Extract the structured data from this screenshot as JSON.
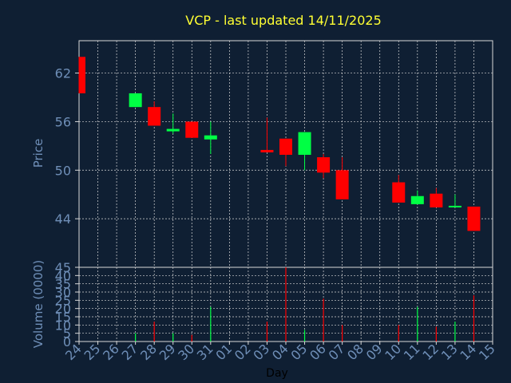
{
  "title": "VCP - last updated 14/11/2025",
  "colors": {
    "background": "#0f1f33",
    "title": "#ffff33",
    "axis_text": "#6f8fb8",
    "grid": "#d8d8d8",
    "up": "#00ff44",
    "down": "#ff0000"
  },
  "chart_data": {
    "type": "candlestick",
    "xlabel": "Day",
    "x_ticks": [
      "24",
      "25",
      "26",
      "27",
      "28",
      "29",
      "30",
      "31",
      "01",
      "02",
      "03",
      "04",
      "05",
      "06",
      "07",
      "08",
      "09",
      "10",
      "11",
      "12",
      "13",
      "14",
      "15"
    ],
    "price_panel": {
      "ylabel": "Price",
      "ylim": [
        38,
        66
      ],
      "y_ticks": [
        44,
        50,
        56,
        62
      ],
      "candles": [
        {
          "x": "24",
          "open": 64.0,
          "close": 59.5,
          "high": 64.0,
          "low": 59.5
        },
        {
          "x": "27",
          "open": 57.8,
          "close": 59.5,
          "high": 59.5,
          "low": 57.8
        },
        {
          "x": "28",
          "open": 57.8,
          "close": 55.5,
          "high": 58.5,
          "low": 55.5
        },
        {
          "x": "29",
          "open": 54.8,
          "close": 55.1,
          "high": 57.0,
          "low": 54.5
        },
        {
          "x": "30",
          "open": 56.0,
          "close": 54.0,
          "high": 56.0,
          "low": 54.0
        },
        {
          "x": "31",
          "open": 53.8,
          "close": 54.3,
          "high": 56.0,
          "low": 52.0
        },
        {
          "x": "03",
          "open": 52.5,
          "close": 52.2,
          "high": 56.5,
          "low": 52.2
        },
        {
          "x": "04",
          "open": 53.9,
          "close": 51.9,
          "high": 53.9,
          "low": 50.5
        },
        {
          "x": "05",
          "open": 51.9,
          "close": 54.7,
          "high": 54.7,
          "low": 50.0
        },
        {
          "x": "06",
          "open": 51.6,
          "close": 49.7,
          "high": 52.0,
          "low": 49.0
        },
        {
          "x": "07",
          "open": 50.0,
          "close": 46.4,
          "high": 51.6,
          "low": 46.4
        },
        {
          "x": "10",
          "open": 48.5,
          "close": 46.0,
          "high": 49.4,
          "low": 46.0
        },
        {
          "x": "11",
          "open": 45.8,
          "close": 46.8,
          "high": 47.5,
          "low": 45.8
        },
        {
          "x": "12",
          "open": 47.1,
          "close": 45.4,
          "high": 47.8,
          "low": 45.4
        },
        {
          "x": "13",
          "open": 45.4,
          "close": 45.6,
          "high": 47.0,
          "low": 45.4
        },
        {
          "x": "14",
          "open": 45.5,
          "close": 42.5,
          "high": 45.5,
          "low": 42.5
        }
      ]
    },
    "volume_panel": {
      "ylabel": "Volume (0000)",
      "ylim": [
        0,
        45
      ],
      "y_ticks": [
        0,
        5,
        10,
        15,
        20,
        25,
        30,
        35,
        40,
        45
      ],
      "bars": [
        {
          "x": "24",
          "value": 0,
          "dir": "down"
        },
        {
          "x": "27",
          "value": 5,
          "dir": "up"
        },
        {
          "x": "28",
          "value": 12,
          "dir": "down"
        },
        {
          "x": "29",
          "value": 5,
          "dir": "up"
        },
        {
          "x": "30",
          "value": 4,
          "dir": "down"
        },
        {
          "x": "31",
          "value": 21,
          "dir": "up"
        },
        {
          "x": "03",
          "value": 12,
          "dir": "down"
        },
        {
          "x": "04",
          "value": 45,
          "dir": "down"
        },
        {
          "x": "05",
          "value": 7,
          "dir": "up"
        },
        {
          "x": "06",
          "value": 26,
          "dir": "down"
        },
        {
          "x": "07",
          "value": 10,
          "dir": "down"
        },
        {
          "x": "10",
          "value": 10,
          "dir": "down"
        },
        {
          "x": "11",
          "value": 21,
          "dir": "up"
        },
        {
          "x": "12",
          "value": 9,
          "dir": "down"
        },
        {
          "x": "13",
          "value": 12,
          "dir": "up"
        },
        {
          "x": "14",
          "value": 28,
          "dir": "down"
        }
      ]
    }
  }
}
